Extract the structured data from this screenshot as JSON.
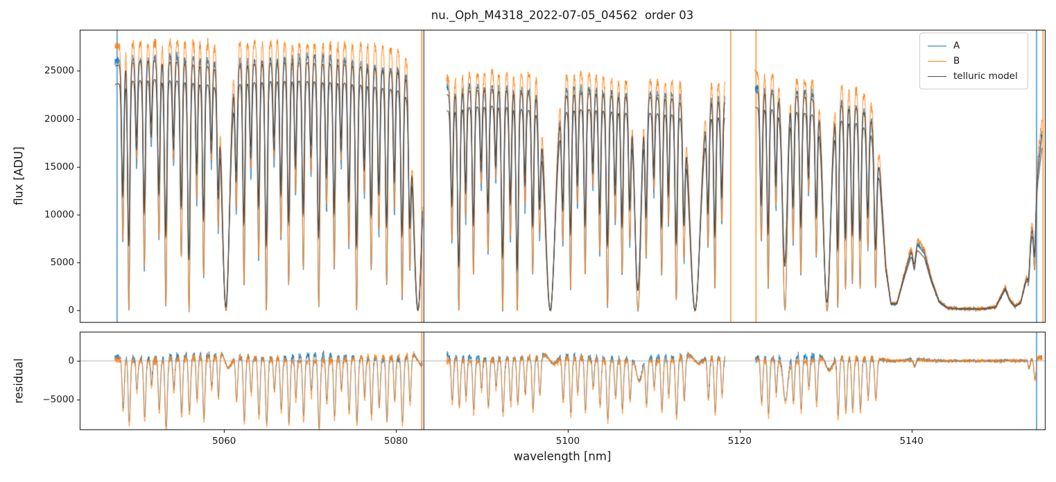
{
  "chart_data": {
    "type": "line",
    "title": "nu._Oph_M4318_2022-07-05_04562  order 03",
    "xlabel": "wavelength [nm]",
    "ylabel_top": "flux [ADU]",
    "ylabel_bottom": "residual",
    "xlim": [
      5043.2,
      5155.6
    ],
    "ylim_top": [
      -1300,
      29300
    ],
    "ylim_bottom": [
      -8900,
      3750
    ],
    "xticks": [
      5060,
      5080,
      5100,
      5120,
      5140
    ],
    "yticks_top": [
      0,
      5000,
      10000,
      15000,
      20000,
      25000
    ],
    "yticks_bottom": [
      {
        "v": 0,
        "label": "0"
      },
      {
        "v": -5000,
        "label": "−5000"
      }
    ],
    "grid": "off",
    "zero_line_color": "#a8a8a8",
    "colors": {
      "A": "#1f77b4",
      "B": "#ff7f0e",
      "M": "#4a4a4a"
    },
    "legend": {
      "position": "upper right",
      "entries": [
        {
          "label": "A",
          "series": "A"
        },
        {
          "label": "B",
          "series": "B"
        },
        {
          "label": "telluric model",
          "series": "M"
        }
      ]
    },
    "series_params": {
      "scale_A": 1.02,
      "scale_B": 1.085,
      "scale_model2": 0.925,
      "obs_line_depth_boost": 1.45,
      "obs_line_shift_nm": 0.02,
      "resid_B_model_scale": 1.075,
      "noise_sigma_base": 150,
      "noise_sigma_flux_frac": 0.007,
      "sample_step_nm": 0.02
    },
    "segments": [
      [
        5047.3,
        5083.1
      ],
      [
        5085.9,
        5118.3
      ],
      [
        5121.8,
        5155.2
      ]
    ],
    "continuum": [
      [
        5047.3,
        25500
      ],
      [
        5049,
        25900
      ],
      [
        5052,
        26100
      ],
      [
        5055,
        25900
      ],
      [
        5058,
        25500
      ],
      [
        5060,
        25300
      ],
      [
        5062,
        25600
      ],
      [
        5065,
        25900
      ],
      [
        5068,
        25950
      ],
      [
        5071,
        25850
      ],
      [
        5074,
        25700
      ],
      [
        5076,
        25500
      ],
      [
        5078,
        25200
      ],
      [
        5080,
        24900
      ],
      [
        5082,
        24500
      ],
      [
        5083.1,
        24100
      ],
      [
        5085.9,
        22500
      ],
      [
        5088,
        22900
      ],
      [
        5091,
        23100
      ],
      [
        5093,
        23000
      ],
      [
        5095,
        22700
      ],
      [
        5097,
        22300
      ],
      [
        5099,
        22300
      ],
      [
        5101,
        22700
      ],
      [
        5103,
        22700
      ],
      [
        5105,
        22500
      ],
      [
        5107,
        22300
      ],
      [
        5109,
        22300
      ],
      [
        5111,
        22200
      ],
      [
        5113,
        22100
      ],
      [
        5115,
        21900
      ],
      [
        5117,
        21900
      ],
      [
        5118.3,
        21800
      ],
      [
        5121.8,
        22900
      ],
      [
        5123,
        22800
      ],
      [
        5125,
        22500
      ],
      [
        5127,
        22400
      ],
      [
        5129,
        22000
      ],
      [
        5131,
        21600
      ],
      [
        5132.5,
        21300
      ],
      [
        5134,
        21100
      ],
      [
        5135.3,
        19800
      ],
      [
        5136.3,
        14500
      ],
      [
        5137,
        4500
      ],
      [
        5137.6,
        700
      ],
      [
        5138.3,
        700
      ],
      [
        5139.2,
        3800
      ],
      [
        5140,
        6200
      ],
      [
        5140.7,
        6800
      ],
      [
        5141.5,
        5900
      ],
      [
        5142.3,
        3200
      ],
      [
        5143.2,
        900
      ],
      [
        5144.2,
        250
      ],
      [
        5145.5,
        150
      ],
      [
        5147,
        130
      ],
      [
        5148.5,
        150
      ],
      [
        5149.8,
        350
      ],
      [
        5150.5,
        1600
      ],
      [
        5150.9,
        2300
      ],
      [
        5151.4,
        1100
      ],
      [
        5152,
        400
      ],
      [
        5152.7,
        800
      ],
      [
        5153.4,
        3500
      ],
      [
        5154,
        8500
      ],
      [
        5154.7,
        14500
      ],
      [
        5155.2,
        18500
      ]
    ],
    "absorption_lines": [
      [
        5048.2,
        0.5,
        0.13
      ],
      [
        5048.9,
        0.72,
        0.13
      ],
      [
        5049.8,
        0.3,
        0.12
      ],
      [
        5050.7,
        0.58,
        0.13
      ],
      [
        5051.5,
        0.25,
        0.12
      ],
      [
        5052.4,
        0.5,
        0.13
      ],
      [
        5053.2,
        0.68,
        0.14
      ],
      [
        5054.1,
        0.3,
        0.12
      ],
      [
        5055.0,
        0.55,
        0.13
      ],
      [
        5055.9,
        0.78,
        0.14
      ],
      [
        5056.8,
        0.4,
        0.12
      ],
      [
        5057.6,
        0.6,
        0.13
      ],
      [
        5058.5,
        0.3,
        0.12
      ],
      [
        5059.3,
        0.45,
        0.12
      ],
      [
        5060.2,
        0.985,
        0.42
      ],
      [
        5061.4,
        0.42,
        0.13
      ],
      [
        5062.3,
        0.62,
        0.13
      ],
      [
        5063.1,
        0.33,
        0.12
      ],
      [
        5064.0,
        0.55,
        0.13
      ],
      [
        5064.9,
        0.72,
        0.14
      ],
      [
        5065.8,
        0.3,
        0.12
      ],
      [
        5066.6,
        0.5,
        0.13
      ],
      [
        5067.5,
        0.62,
        0.13
      ],
      [
        5068.3,
        0.38,
        0.12
      ],
      [
        5069.2,
        0.58,
        0.13
      ],
      [
        5070.1,
        0.33,
        0.12
      ],
      [
        5071.0,
        0.68,
        0.14
      ],
      [
        5071.9,
        0.42,
        0.13
      ],
      [
        5072.8,
        0.58,
        0.13
      ],
      [
        5073.6,
        0.3,
        0.12
      ],
      [
        5074.5,
        0.52,
        0.13
      ],
      [
        5075.4,
        0.72,
        0.14
      ],
      [
        5076.3,
        0.38,
        0.12
      ],
      [
        5077.1,
        0.58,
        0.13
      ],
      [
        5078.0,
        0.48,
        0.13
      ],
      [
        5078.9,
        0.62,
        0.13
      ],
      [
        5079.8,
        0.42,
        0.12
      ],
      [
        5080.7,
        0.66,
        0.14
      ],
      [
        5081.6,
        0.55,
        0.13
      ],
      [
        5082.55,
        1.0,
        0.5
      ],
      [
        5086.5,
        0.48,
        0.13
      ],
      [
        5087.3,
        0.78,
        0.14
      ],
      [
        5088.1,
        0.42,
        0.12
      ],
      [
        5089.0,
        0.58,
        0.13
      ],
      [
        5089.9,
        0.32,
        0.12
      ],
      [
        5090.7,
        0.52,
        0.13
      ],
      [
        5091.6,
        0.3,
        0.12
      ],
      [
        5092.4,
        0.74,
        0.14
      ],
      [
        5093.3,
        0.48,
        0.13
      ],
      [
        5094.1,
        0.8,
        0.14
      ],
      [
        5095.0,
        0.38,
        0.12
      ],
      [
        5095.9,
        0.58,
        0.13
      ],
      [
        5096.7,
        0.45,
        0.13
      ],
      [
        5097.95,
        1.0,
        0.55
      ],
      [
        5099.4,
        0.48,
        0.13
      ],
      [
        5100.3,
        0.62,
        0.13
      ],
      [
        5101.1,
        0.38,
        0.12
      ],
      [
        5102.0,
        0.58,
        0.13
      ],
      [
        5102.9,
        0.32,
        0.12
      ],
      [
        5103.7,
        0.52,
        0.13
      ],
      [
        5104.6,
        0.68,
        0.14
      ],
      [
        5105.5,
        0.42,
        0.13
      ],
      [
        5106.3,
        0.58,
        0.13
      ],
      [
        5107.2,
        0.48,
        0.13
      ],
      [
        5108.15,
        0.9,
        0.35
      ],
      [
        5109.1,
        0.52,
        0.13
      ],
      [
        5110.0,
        0.33,
        0.12
      ],
      [
        5110.9,
        0.58,
        0.13
      ],
      [
        5111.7,
        0.42,
        0.12
      ],
      [
        5112.6,
        0.66,
        0.14
      ],
      [
        5113.5,
        0.52,
        0.13
      ],
      [
        5114.8,
        1.0,
        0.6
      ],
      [
        5116.3,
        0.48,
        0.13
      ],
      [
        5117.1,
        0.62,
        0.13
      ],
      [
        5117.9,
        0.42,
        0.12
      ],
      [
        5122.5,
        0.48,
        0.13
      ],
      [
        5123.3,
        0.62,
        0.13
      ],
      [
        5124.2,
        0.38,
        0.12
      ],
      [
        5125.25,
        0.78,
        0.28
      ],
      [
        5126.2,
        0.48,
        0.13
      ],
      [
        5127.1,
        0.58,
        0.13
      ],
      [
        5128.0,
        0.33,
        0.12
      ],
      [
        5128.9,
        0.52,
        0.13
      ],
      [
        5130.15,
        0.96,
        0.42
      ],
      [
        5131.4,
        0.68,
        0.13
      ],
      [
        5132.3,
        0.62,
        0.13
      ],
      [
        5133.1,
        0.6,
        0.13
      ],
      [
        5134.0,
        0.62,
        0.13
      ],
      [
        5134.9,
        0.48,
        0.13
      ],
      [
        5135.8,
        0.6,
        0.14
      ],
      [
        5140.3,
        0.25,
        0.15
      ],
      [
        5153.6,
        0.35,
        0.12
      ],
      [
        5154.3,
        0.45,
        0.13
      ]
    ],
    "spikes": [
      {
        "x": 5047.55,
        "series": "A",
        "panels": "top"
      },
      {
        "x": 5083.0,
        "series": "B",
        "panels": "both"
      },
      {
        "x": 5083.25,
        "series": "M",
        "panels": "both"
      },
      {
        "x": 5118.95,
        "series": "B",
        "panels": "top"
      },
      {
        "x": 5121.9,
        "series": "B",
        "panels": "top"
      },
      {
        "x": 5154.55,
        "series": "A",
        "panels": "both"
      },
      {
        "x": 5155.3,
        "series": "B",
        "panels": "top"
      }
    ]
  }
}
